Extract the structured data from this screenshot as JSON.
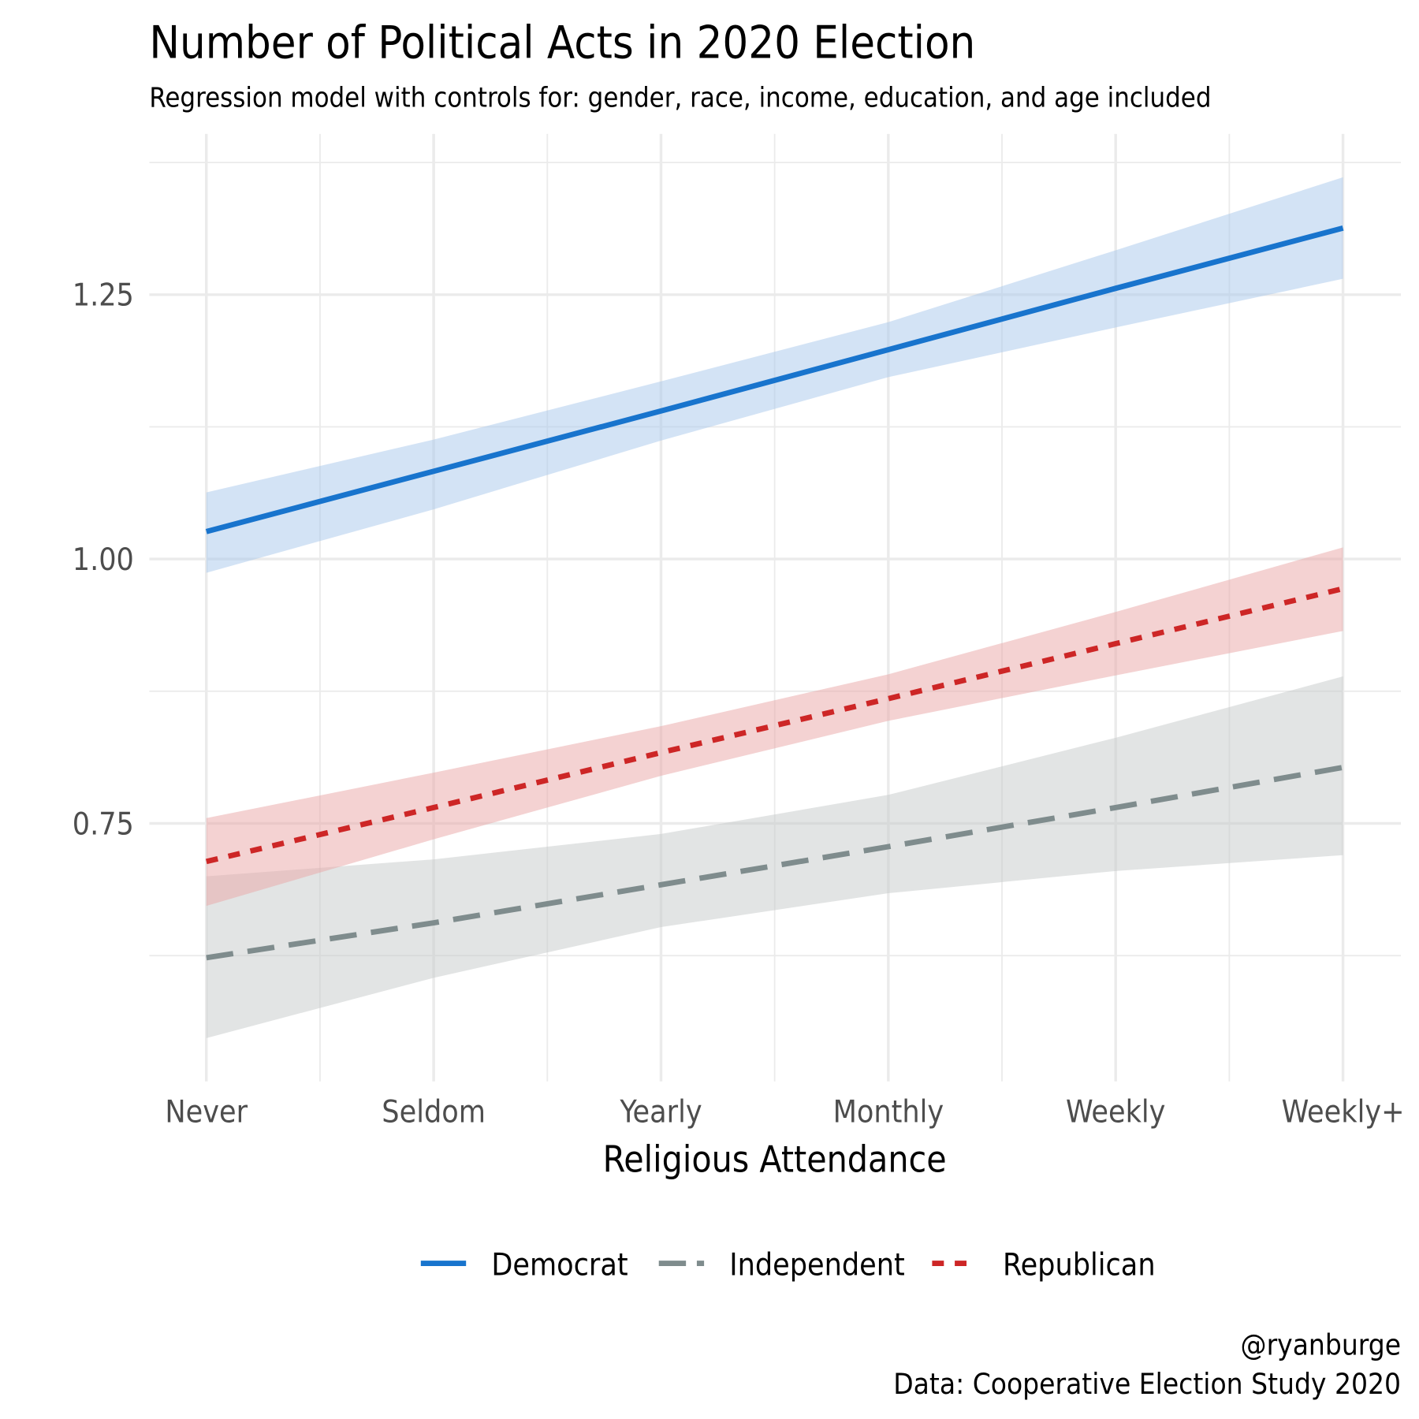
{
  "chart_data": {
    "type": "line",
    "title": "Number of Political Acts in 2020 Election",
    "subtitle": "Regression model with controls for: gender, race, income, education, and age included",
    "xlabel": "Religious Attendance",
    "ylabel": "",
    "categories": [
      "Never",
      "Seldom",
      "Yearly",
      "Monthly",
      "Weekly",
      "Weekly+"
    ],
    "ylim": [
      0.506,
      1.402
    ],
    "yticks": [
      0.75,
      1.0,
      1.25
    ],
    "ytick_labels": [
      "0.75",
      "1.00",
      "1.25"
    ],
    "grid": true,
    "legend_position": "bottom",
    "series": [
      {
        "name": "Democrat",
        "color": "#1874CD",
        "linestyle": "solid",
        "values": [
          1.026,
          1.083,
          1.14,
          1.198,
          1.256,
          1.313
        ],
        "lower": [
          0.987,
          1.047,
          1.112,
          1.172,
          1.219,
          1.265
        ],
        "upper": [
          1.063,
          1.113,
          1.168,
          1.224,
          1.292,
          1.361
        ]
      },
      {
        "name": "Independent",
        "color": "#7F8C8D",
        "linestyle": "longdash",
        "values": [
          0.623,
          0.656,
          0.692,
          0.728,
          0.765,
          0.803
        ],
        "lower": [
          0.547,
          0.604,
          0.652,
          0.684,
          0.705,
          0.72
        ],
        "upper": [
          0.7,
          0.716,
          0.74,
          0.777,
          0.831,
          0.889
        ]
      },
      {
        "name": "Republican",
        "color": "#CD2626",
        "linestyle": "dashed",
        "values": [
          0.714,
          0.765,
          0.817,
          0.868,
          0.92,
          0.972
        ],
        "lower": [
          0.672,
          0.735,
          0.795,
          0.847,
          0.89,
          0.932
        ],
        "upper": [
          0.755,
          0.798,
          0.842,
          0.891,
          0.95,
          1.011
        ]
      }
    ],
    "caption": [
      "@ryanburge",
      "Data: Cooperative Election Study 2020"
    ]
  }
}
